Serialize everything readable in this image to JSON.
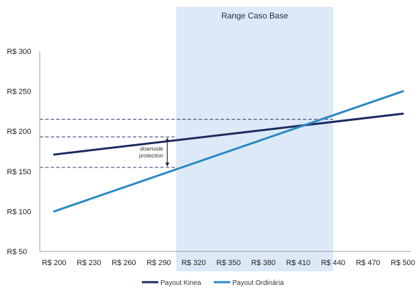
{
  "chart_data": {
    "type": "line",
    "x": [
      200,
      230,
      260,
      290,
      320,
      350,
      380,
      410,
      440,
      470,
      500
    ],
    "categories": [
      "R$ 200",
      "R$ 230",
      "R$ 260",
      "R$ 290",
      "R$ 320",
      "R$ 350",
      "R$ 380",
      "R$ 410",
      "R$ 440",
      "R$ 470",
      "R$ 500"
    ],
    "ylim": [
      50,
      300
    ],
    "yticks": [
      {
        "value": 50,
        "label": "R$ 50"
      },
      {
        "value": 100,
        "label": "R$ 100"
      },
      {
        "value": 150,
        "label": "R$ 150"
      },
      {
        "value": 200,
        "label": "R$ 200"
      },
      {
        "value": 250,
        "label": "R$ 250"
      },
      {
        "value": 300,
        "label": "R$ 300"
      }
    ],
    "grid": false,
    "legend_position": "bottom",
    "series": [
      {
        "name": "Payout Kinea",
        "color": "#1b2a5e",
        "points": [
          [
            200,
            171
          ],
          [
            500,
            222
          ]
        ]
      },
      {
        "name": "Payout Ordinária",
        "color": "#2a88c4",
        "points": [
          [
            200,
            100
          ],
          [
            500,
            250
          ]
        ]
      }
    ],
    "shaded_range": {
      "label": "Range Caso Base",
      "x_from": 305,
      "x_to": 440,
      "color": "#dce9f6"
    },
    "reference_lines": [
      {
        "y": 215,
        "x_from": 200,
        "x_to": 440
      },
      {
        "y": 193,
        "x_from": 200,
        "x_to": 305
      },
      {
        "y": 155,
        "x_from": 200,
        "x_to": 305
      }
    ],
    "annotation": {
      "line1": "downside",
      "line2": "protection",
      "arrow_x": 305,
      "y_from": 155,
      "y_to": 193
    }
  }
}
